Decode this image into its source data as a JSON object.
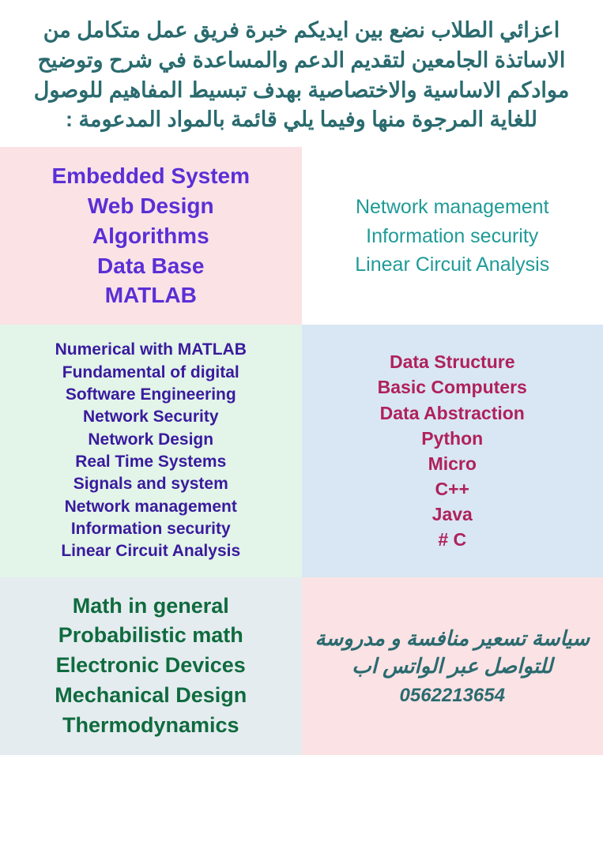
{
  "header": {
    "text": "اعزائي الطلاب نضع بين ايديكم خبرة فريق عمل متكامل من الاساتذة الجامعين لتقديم الدعم والمساعدة في شرح وتوضيح موادكم الاساسية والاختصاصية بهدف تبسيط المفاهيم للوصول للغاية المرجوة منها وفيما يلي قائمة بالمواد المدعومة :",
    "color": "#2a6b6f",
    "fontsize": 27
  },
  "cells": {
    "c1": {
      "bg": "#fbe2e5",
      "text_color": "#5a2fd6",
      "fontsize": 28,
      "items": [
        "Embedded System",
        "Web Design",
        "Algorithms",
        "Data Base",
        "MATLAB"
      ]
    },
    "c2": {
      "bg": "#ffffff",
      "text_color": "#1f9b98",
      "fontsize": 25,
      "items": [
        "Network management",
        "Information security",
        "Linear Circuit Analysis"
      ]
    },
    "c3": {
      "bg": "#e2f5e8",
      "text_color": "#3a1a9e",
      "fontsize": 21,
      "items": [
        "Numerical with MATLAB",
        "Fundamental of digital",
        "Software Engineering",
        "Network Security",
        "Network Design",
        "Real Time Systems",
        "Signals and system",
        "Network management",
        "Information security",
        "Linear Circuit Analysis"
      ]
    },
    "c4": {
      "bg": "#d8e7f3",
      "text_color": "#b0215c",
      "fontsize": 23,
      "items": [
        "Data Structure",
        "Basic Computers",
        "Data Abstraction",
        "Python",
        "Micro",
        "C++",
        "Java",
        "# C"
      ]
    },
    "c5": {
      "bg": "#e5ecf0",
      "text_color": "#0f6b3e",
      "fontsize": 27,
      "items": [
        "Math in general",
        "Probabilistic math",
        "Electronic Devices",
        "Mechanical Design",
        "Thermodynamics"
      ]
    },
    "c6": {
      "bg": "#fbe2e5",
      "pricing_text": "سياسة تسعير منافسة و مدروسة للتواصل عبر الواتس اب",
      "pricing_color": "#2a6b6f",
      "pricing_fontsize": 26,
      "phone": "0562213654",
      "phone_fontsize": 24
    }
  }
}
